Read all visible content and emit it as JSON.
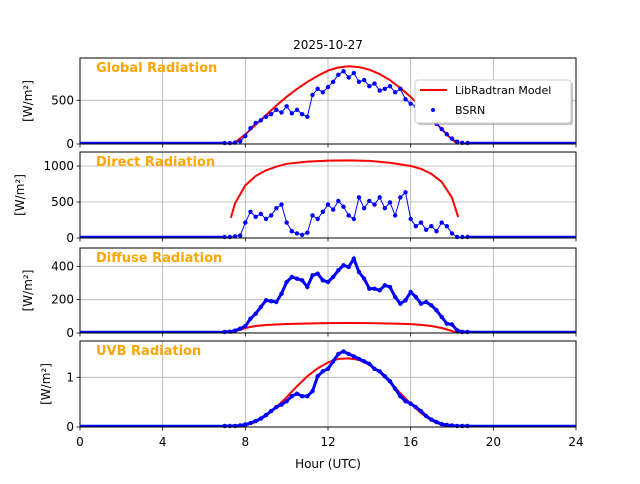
{
  "chart_data": {
    "type": "line",
    "title": "2025-10-27",
    "xlabel": "Hour (UTC)",
    "xlim": [
      0,
      24
    ],
    "xticks": [
      0,
      4,
      8,
      12,
      16,
      20,
      24
    ],
    "grid": true,
    "legend": {
      "placement": "top-right of first panel",
      "entries": [
        {
          "label": "LibRadtran Model",
          "color": "#ff0000",
          "style": "line"
        },
        {
          "label": "BSRN",
          "color": "#0000ff",
          "style": "dots"
        }
      ]
    },
    "bsrn_x_start": 7,
    "bsrn_x_step": 0.25,
    "panels": [
      {
        "name": "Global Radiation",
        "ylabel": "[W/m²]",
        "ylim": [
          0,
          984
        ],
        "yticks": [
          0,
          500
        ],
        "model": {
          "x": [
            7.3,
            7.5,
            8,
            8.5,
            9,
            9.5,
            10,
            10.5,
            11,
            11.5,
            12,
            12.5,
            13,
            13.5,
            14,
            14.5,
            15,
            15.5,
            16,
            16.5,
            17,
            17.5,
            18,
            18.3
          ],
          "y": [
            0,
            20,
            110,
            220,
            330,
            440,
            540,
            630,
            710,
            780,
            840,
            875,
            890,
            880,
            850,
            800,
            730,
            640,
            540,
            420,
            300,
            170,
            50,
            0
          ]
        },
        "bsrn": [
          0,
          0,
          5,
          20,
          80,
          170,
          230,
          260,
          300,
          330,
          380,
          350,
          420,
          340,
          380,
          330,
          300,
          550,
          620,
          580,
          640,
          700,
          780,
          820,
          750,
          800,
          700,
          720,
          650,
          680,
          600,
          620,
          650,
          580,
          620,
          500,
          450,
          420,
          380,
          330,
          280,
          220,
          160,
          100,
          50,
          15,
          2,
          0
        ]
      },
      {
        "name": "Direct Radiation",
        "ylabel": "[W/m²]",
        "ylim": [
          0,
          1194
        ],
        "yticks": [
          0,
          500,
          1000
        ],
        "model": {
          "x": [
            7.3,
            7.5,
            8,
            8.5,
            9,
            9.5,
            10,
            11,
            12,
            13,
            14,
            15,
            16,
            16.5,
            17,
            17.5,
            18,
            18.3
          ],
          "y": [
            280,
            480,
            730,
            860,
            940,
            990,
            1030,
            1060,
            1075,
            1078,
            1070,
            1045,
            1000,
            960,
            890,
            780,
            560,
            290
          ]
        },
        "bsrn": [
          0,
          0,
          10,
          20,
          200,
          350,
          280,
          320,
          250,
          300,
          400,
          450,
          200,
          80,
          50,
          30,
          60,
          300,
          250,
          350,
          450,
          380,
          500,
          420,
          300,
          250,
          550,
          400,
          500,
          450,
          550,
          400,
          480,
          300,
          550,
          620,
          250,
          150,
          200,
          100,
          150,
          80,
          200,
          150,
          50,
          0,
          0,
          0
        ]
      },
      {
        "name": "Diffuse Radiation",
        "ylabel": "[W/m²]",
        "ylim": [
          0,
          510
        ],
        "yticks": [
          0,
          200,
          400
        ],
        "model": {
          "x": [
            7.3,
            7.5,
            8,
            8.5,
            9,
            10,
            11,
            12,
            13,
            14,
            15,
            16,
            16.5,
            17,
            17.5,
            18,
            18.3
          ],
          "y": [
            0,
            10,
            30,
            42,
            48,
            54,
            57,
            59,
            60,
            59,
            57,
            53,
            49,
            42,
            30,
            12,
            0
          ]
        },
        "bsrn": [
          0,
          2,
          8,
          20,
          35,
          80,
          110,
          150,
          190,
          185,
          180,
          230,
          300,
          330,
          320,
          310,
          270,
          340,
          350,
          310,
          300,
          330,
          370,
          400,
          390,
          440,
          360,
          320,
          260,
          260,
          250,
          280,
          270,
          210,
          170,
          190,
          240,
          210,
          170,
          180,
          160,
          130,
          90,
          50,
          45,
          10,
          0,
          0
        ]
      },
      {
        "name": "UVB Radiation",
        "ylabel": "[W/m²]",
        "ylim": [
          0,
          1.73
        ],
        "yticks": [
          0,
          1
        ],
        "model": {
          "x": [
            7.5,
            8,
            8.5,
            9,
            9.5,
            10,
            10.5,
            11,
            11.5,
            12,
            12.5,
            13,
            13.5,
            14,
            14.5,
            15,
            15.5,
            16,
            16.5,
            17,
            17.5,
            18
          ],
          "y": [
            0,
            0.03,
            0.1,
            0.22,
            0.4,
            0.6,
            0.82,
            1.02,
            1.18,
            1.3,
            1.37,
            1.38,
            1.35,
            1.25,
            1.1,
            0.9,
            0.68,
            0.47,
            0.28,
            0.13,
            0.04,
            0.01
          ]
        },
        "bsrn": [
          0,
          0,
          0,
          0.01,
          0.03,
          0.06,
          0.1,
          0.15,
          0.22,
          0.3,
          0.38,
          0.43,
          0.5,
          0.6,
          0.65,
          0.6,
          0.6,
          0.7,
          1.0,
          1.1,
          1.15,
          1.3,
          1.45,
          1.5,
          1.45,
          1.4,
          1.35,
          1.3,
          1.25,
          1.15,
          1.1,
          1.0,
          0.9,
          0.75,
          0.6,
          0.5,
          0.45,
          0.38,
          0.3,
          0.2,
          0.13,
          0.08,
          0.04,
          0.02,
          0.01,
          0,
          0,
          0
        ]
      }
    ]
  }
}
